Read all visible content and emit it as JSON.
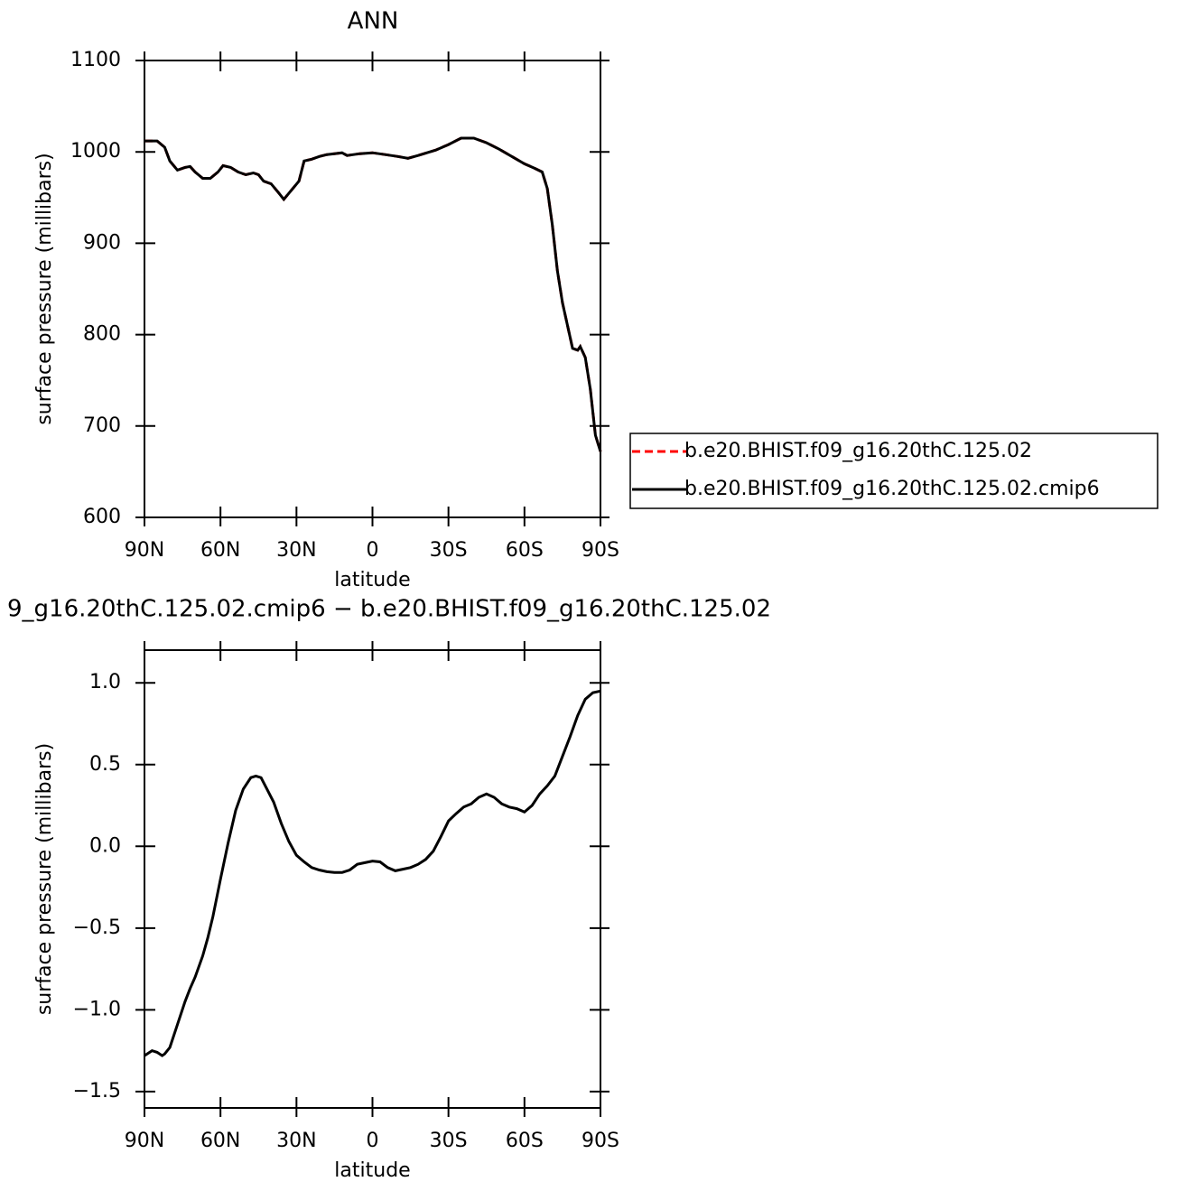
{
  "chart_data": [
    {
      "type": "line",
      "title": "ANN",
      "xlabel": "latitude",
      "ylabel": "surface pressure (millibars)",
      "x": [
        90,
        85,
        82,
        80,
        77,
        74,
        72,
        70,
        67,
        64,
        61,
        59,
        56,
        53,
        50,
        47,
        45,
        43,
        40,
        37,
        35,
        32,
        29,
        27,
        24,
        21,
        18,
        15,
        12,
        10,
        5,
        0,
        -5,
        -10,
        -14,
        -18,
        -25,
        -30,
        -35,
        -40,
        -45,
        -50,
        -55,
        -60,
        -64,
        -67,
        -69,
        -71,
        -73,
        -75,
        -77,
        -79,
        -81,
        -82,
        -84,
        -86,
        -88,
        -90
      ],
      "series": [
        {
          "name": "b.e20.BHIST.f09_g16.20thC.125.02",
          "color": "#ff0000",
          "dash": true,
          "values": [
            1012,
            1012,
            1005,
            990,
            980,
            983,
            984,
            978,
            971,
            971,
            978,
            985,
            983,
            978,
            975,
            977,
            975,
            968,
            965,
            955,
            948,
            958,
            968,
            990,
            992,
            995,
            997,
            998,
            999,
            996,
            998,
            999,
            997,
            995,
            993,
            996,
            1002,
            1008,
            1015,
            1015,
            1010,
            1003,
            995,
            987,
            982,
            978,
            960,
            920,
            870,
            835,
            810,
            785,
            783,
            787,
            775,
            740,
            690,
            672
          ]
        },
        {
          "name": "b.e20.BHIST.f09_g16.20thC.125.02.cmip6",
          "color": "#000000",
          "dash": false,
          "values": [
            1012,
            1012,
            1005,
            990,
            980,
            983,
            984,
            978,
            971,
            971,
            978,
            985,
            983,
            978,
            975,
            977,
            975,
            968,
            965,
            955,
            948,
            958,
            968,
            990,
            992,
            995,
            997,
            998,
            999,
            996,
            998,
            999,
            997,
            995,
            993,
            996,
            1002,
            1008,
            1015,
            1015,
            1010,
            1003,
            995,
            987,
            982,
            978,
            960,
            920,
            870,
            835,
            810,
            785,
            783,
            787,
            775,
            740,
            690,
            672
          ]
        }
      ],
      "xlim": [
        90,
        -90
      ],
      "xticks": [
        {
          "value": 90,
          "label": "90N"
        },
        {
          "value": 60,
          "label": "60N"
        },
        {
          "value": 30,
          "label": "30N"
        },
        0,
        {
          "value": -30,
          "label": "30S"
        },
        {
          "value": -60,
          "label": "60S"
        },
        {
          "value": -90,
          "label": "90S"
        }
      ],
      "ylim": [
        600,
        1100
      ],
      "yticks": [
        600,
        700,
        800,
        900,
        1000,
        1100
      ],
      "legend": "right"
    },
    {
      "type": "line",
      "title": "9_g16.20thC.125.02.cmip6 − b.e20.BHIST.f09_g16.20thC.125.02",
      "xlabel": "latitude",
      "ylabel": "surface pressure (millibars)",
      "x": [
        90,
        87,
        85,
        83,
        82,
        80,
        77,
        74,
        72,
        70,
        67,
        65,
        63,
        60,
        57,
        54,
        51,
        48,
        46,
        44,
        42,
        39,
        36,
        33,
        30,
        27,
        24,
        21,
        18,
        15,
        12,
        9,
        6,
        3,
        0,
        -3,
        -6,
        -9,
        -12,
        -15,
        -18,
        -21,
        -24,
        -27,
        -30,
        -33,
        -36,
        -39,
        -42,
        -45,
        -48,
        -51,
        -54,
        -57,
        -60,
        -63,
        -66,
        -69,
        -72,
        -75,
        -78,
        -81,
        -84,
        -87,
        -90
      ],
      "values": [
        -1.28,
        -1.25,
        -1.26,
        -1.28,
        -1.27,
        -1.23,
        -1.09,
        -0.95,
        -0.87,
        -0.8,
        -0.67,
        -0.56,
        -0.43,
        -0.2,
        0.02,
        0.22,
        0.35,
        0.42,
        0.43,
        0.42,
        0.36,
        0.27,
        0.14,
        0.03,
        -0.055,
        -0.095,
        -0.13,
        -0.145,
        -0.155,
        -0.16,
        -0.16,
        -0.145,
        -0.11,
        -0.1,
        -0.09,
        -0.095,
        -0.13,
        -0.15,
        -0.14,
        -0.13,
        -0.11,
        -0.08,
        -0.03,
        0.06,
        0.155,
        0.2,
        0.24,
        0.26,
        0.3,
        0.32,
        0.3,
        0.26,
        0.24,
        0.23,
        0.21,
        0.25,
        0.32,
        0.37,
        0.43,
        0.55,
        0.67,
        0.8,
        0.9,
        0.94,
        0.95
      ],
      "color": "#000000",
      "xlim": [
        90,
        -90
      ],
      "xticks": [
        {
          "value": 90,
          "label": "90N"
        },
        {
          "value": 60,
          "label": "60N"
        },
        {
          "value": 30,
          "label": "30N"
        },
        0,
        {
          "value": -30,
          "label": "30S"
        },
        {
          "value": -60,
          "label": "60S"
        },
        {
          "value": -90,
          "label": "90S"
        }
      ],
      "ylim": [
        -1.6,
        1.2
      ],
      "yticks": [
        {
          "value": -1.5,
          "label": "−1.5"
        },
        {
          "value": -1,
          "label": "−1.0"
        },
        {
          "value": -0.5,
          "label": "−0.5"
        },
        {
          "value": 0,
          "label": "0.0"
        },
        0.5,
        {
          "value": 1,
          "label": "1.0"
        }
      ]
    }
  ]
}
